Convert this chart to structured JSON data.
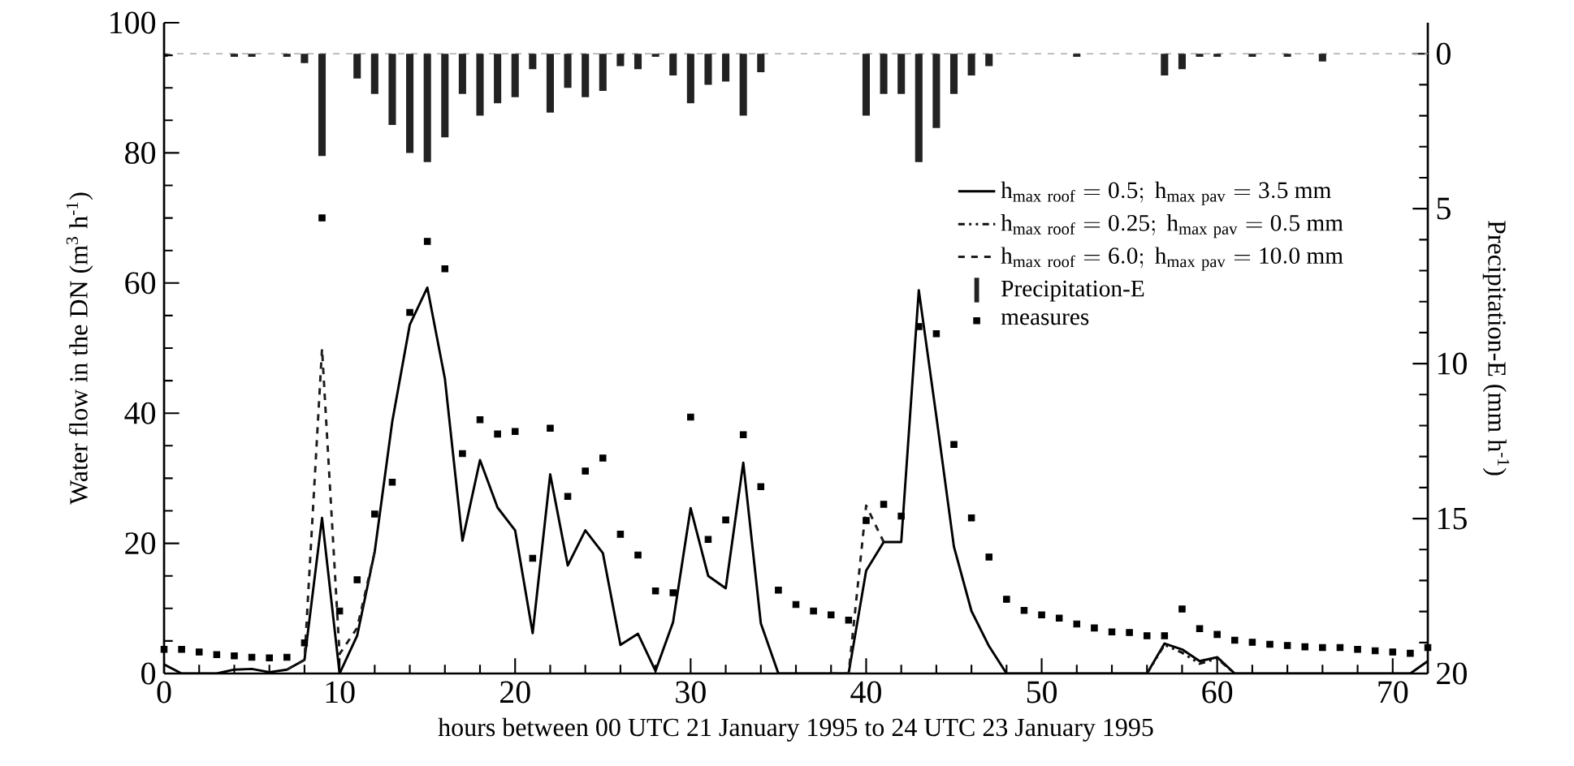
{
  "chart_data": {
    "type": "line",
    "xlabel": "hours between 00 UTC 21 January 1995 to 24 UTC 23 January 1995",
    "ylabel": "Water flow in the DN (m$^{3}$ h$^{-1}$)",
    "y2label": "Precipitation-E (mm h$^{-1}$)",
    "x": [
      0,
      1,
      2,
      3,
      4,
      5,
      6,
      7,
      8,
      9,
      10,
      11,
      12,
      13,
      14,
      15,
      16,
      17,
      18,
      19,
      20,
      21,
      22,
      23,
      24,
      25,
      26,
      27,
      28,
      29,
      30,
      31,
      32,
      33,
      34,
      35,
      36,
      37,
      38,
      39,
      40,
      41,
      42,
      43,
      44,
      45,
      46,
      47,
      48,
      49,
      50,
      51,
      52,
      53,
      54,
      55,
      56,
      57,
      58,
      59,
      60,
      61,
      62,
      63,
      64,
      65,
      66,
      67,
      68,
      69,
      70,
      71,
      72
    ],
    "xlim": [
      0,
      72
    ],
    "xticks": [
      0,
      10,
      20,
      30,
      40,
      50,
      60,
      70
    ],
    "ylim": [
      0,
      100
    ],
    "yticks": [
      0,
      20,
      40,
      60,
      80,
      100
    ],
    "y2lim": [
      20,
      -1
    ],
    "y2ticks": [
      0,
      5,
      10,
      15,
      20
    ],
    "legend": "top right",
    "series": [
      {
        "name": "\\mathrm{h_{max\\ roof}=0.5;\\ h_{max\\ pav}=3.5\\ mm}",
        "color": "#000000",
        "line_style": "solid",
        "values": [
          1.4,
          0,
          0,
          0,
          0.6,
          0.7,
          0.2,
          0.6,
          2.1,
          23.9,
          0,
          5.8,
          18.7,
          38.7,
          53.6,
          59.3,
          45.3,
          20.4,
          32.8,
          25.5,
          22.0,
          6.2,
          30.6,
          16.6,
          22.0,
          18.5,
          4.4,
          6.1,
          0.4,
          7.9,
          25.4,
          15.0,
          13.1,
          32.4,
          7.7,
          0,
          0,
          0,
          0,
          0,
          15.8,
          20.2,
          20.2,
          58.9,
          39.5,
          19.5,
          9.6,
          4.2,
          0,
          0,
          0,
          0,
          0,
          0,
          0,
          0,
          0,
          4.6,
          3.7,
          1.9,
          2.5,
          0,
          0,
          0,
          0,
          0,
          0,
          0,
          0,
          0,
          0,
          0,
          1.9
        ]
      },
      {
        "name": "\\mathrm{h_{max\\ roof}=0.25;\\ h_{max\\ pav}=0.5\\ mm}",
        "color": "#101010",
        "line_style": "dashdotdotted",
        "values": [
          null,
          null,
          null,
          null,
          null,
          null,
          null,
          null,
          null,
          null,
          null,
          null,
          null,
          null,
          null,
          null,
          null,
          null,
          null,
          null,
          null,
          null,
          null,
          null,
          null,
          null,
          null,
          null,
          null,
          null,
          null,
          null,
          null,
          null,
          null,
          null,
          null,
          null,
          null,
          null,
          null,
          null,
          null,
          null,
          null,
          null,
          null,
          null,
          null,
          null,
          null,
          null,
          null,
          null,
          null,
          null,
          0,
          4.4,
          3.2,
          1.5,
          2.3,
          0,
          null,
          null,
          null,
          null,
          null,
          null,
          null,
          null,
          null,
          null,
          null
        ]
      },
      {
        "name": "\\mathrm{h_{max\\ roof}=6.0;\\ h_{max\\ pav}=10.0\\ mm}",
        "color": "#1c1c1c",
        "line_style": "dashed",
        "values": [
          null,
          null,
          null,
          null,
          null,
          null,
          null,
          0.6,
          2.1,
          49.9,
          3.0,
          7.0,
          18.7,
          null,
          null,
          null,
          null,
          null,
          null,
          null,
          null,
          null,
          null,
          null,
          null,
          null,
          null,
          null,
          null,
          null,
          null,
          null,
          null,
          null,
          null,
          null,
          null,
          null,
          0,
          0,
          25.8,
          20.2,
          null,
          null,
          null,
          null,
          null,
          null,
          null,
          null,
          null,
          null,
          null,
          null,
          null,
          null,
          null,
          null,
          null,
          null,
          null,
          null,
          null,
          null,
          null,
          null,
          null,
          null,
          null,
          null,
          null,
          null,
          null
        ]
      },
      {
        "name": "Precipitation-E",
        "type": "bar",
        "axis": "y2",
        "color": "#222222",
        "values": [
          0.1,
          0,
          0,
          0,
          0.1,
          0.1,
          0,
          0.1,
          0.3,
          3.3,
          0,
          0.8,
          1.3,
          2.3,
          3.2,
          3.5,
          2.7,
          1.3,
          2.0,
          1.6,
          1.4,
          0.5,
          1.9,
          1.1,
          1.4,
          1.2,
          0.4,
          0.5,
          0.1,
          0.7,
          1.6,
          1.0,
          0.9,
          2.0,
          0.6,
          0,
          0,
          0,
          0,
          0,
          2.0,
          1.3,
          1.3,
          3.5,
          2.4,
          1.3,
          0.7,
          0.4,
          0,
          0,
          0,
          0,
          0.1,
          0,
          0,
          0,
          0,
          0.7,
          0.5,
          0.1,
          0.1,
          0,
          0.1,
          0,
          0.1,
          0,
          0.25,
          0,
          0,
          0,
          0,
          0,
          0
        ]
      },
      {
        "name": "measures",
        "type": "scatter",
        "marker": "square",
        "color": "#000000",
        "values": [
          3.7,
          3.7,
          3.3,
          2.9,
          2.7,
          2.5,
          2.4,
          2.5,
          4.7,
          70.0,
          9.6,
          14.4,
          24.5,
          29.4,
          55.5,
          66.4,
          62.2,
          33.8,
          39.0,
          36.8,
          37.2,
          17.7,
          37.7,
          27.2,
          31.1,
          33.1,
          21.4,
          18.2,
          12.7,
          12.4,
          39.4,
          20.6,
          23.6,
          36.7,
          28.7,
          12.8,
          10.6,
          9.6,
          9.0,
          8.2,
          23.5,
          26.0,
          24.2,
          53.3,
          52.2,
          35.2,
          23.9,
          17.9,
          11.4,
          9.7,
          9.0,
          8.5,
          7.6,
          7.0,
          6.4,
          6.3,
          5.8,
          5.8,
          9.9,
          6.9,
          6.0,
          5.1,
          4.8,
          4.5,
          4.3,
          4.1,
          4.0,
          4.0,
          3.7,
          3.5,
          3.3,
          3.1,
          4.0
        ]
      }
    ],
    "ref_lines": [
      {
        "axis": "y2",
        "value": 0,
        "color": "#aaaaaa",
        "line_style": "dashed"
      }
    ]
  }
}
